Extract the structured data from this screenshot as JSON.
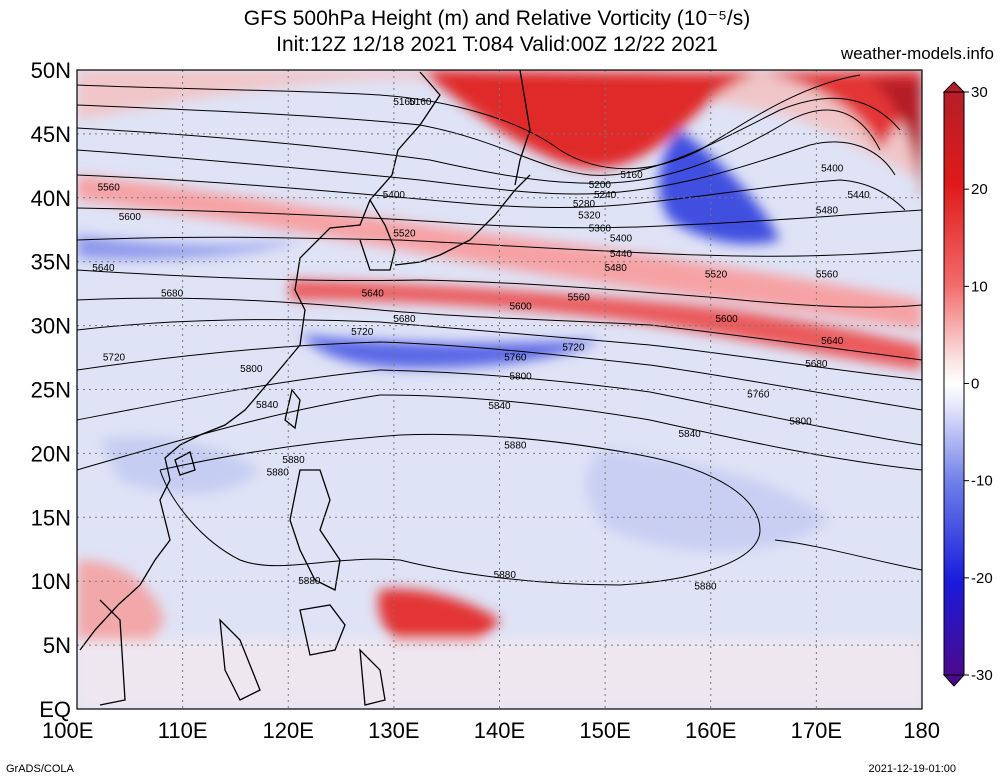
{
  "title_line1": "GFS 500hPa Height (m) and Relative Vorticity (10⁻⁵/s)",
  "title_line2": "Init:12Z 12/18 2021 T:084 Valid:00Z 12/22 2021",
  "site": "weather-models.info",
  "credit_left": "GrADS/COLA",
  "credit_right": "2021-12-19-01:00",
  "map": {
    "lon_range": [
      100,
      180
    ],
    "lat_range": [
      0,
      50
    ],
    "lat_labels": [
      "EQ",
      "5N",
      "10N",
      "15N",
      "20N",
      "25N",
      "30N",
      "35N",
      "40N",
      "45N",
      "50N"
    ],
    "lon_labels": [
      "100E",
      "110E",
      "120E",
      "130E",
      "140E",
      "150E",
      "160E",
      "170E",
      "180"
    ],
    "gridlines": "dotted"
  },
  "colorbar": {
    "ticks": [
      "30",
      "20",
      "10",
      "0",
      "-10",
      "-20",
      "-30"
    ],
    "range": [
      -30,
      30
    ],
    "colors": [
      "#4b0a8c",
      "#1a1adc",
      "#6f7ee8",
      "#ffffff",
      "#f26b6b",
      "#e01a1a",
      "#b41e28"
    ]
  },
  "contours": [
    {
      "label": "5160",
      "lon": 131.0,
      "lat": 47.5
    },
    {
      "label": "5160",
      "lon": 152.5,
      "lat": 41.8
    },
    {
      "label": "5200",
      "lon": 149.5,
      "lat": 41.0
    },
    {
      "label": "5240",
      "lon": 150.0,
      "lat": 40.2
    },
    {
      "label": "5280",
      "lon": 148.0,
      "lat": 39.5
    },
    {
      "label": "5320",
      "lon": 148.5,
      "lat": 38.6
    },
    {
      "label": "5360",
      "lon": 149.5,
      "lat": 37.6
    },
    {
      "label": "5400",
      "lon": 151.5,
      "lat": 36.8
    },
    {
      "label": "5440",
      "lon": 151.5,
      "lat": 35.6
    },
    {
      "label": "5480",
      "lon": 151.0,
      "lat": 34.5
    },
    {
      "label": "5520",
      "lon": 160.5,
      "lat": 34.0
    },
    {
      "label": "5560",
      "lon": 147.5,
      "lat": 32.2
    },
    {
      "label": "5600",
      "lon": 142.0,
      "lat": 31.5
    },
    {
      "label": "5640",
      "lon": 128.0,
      "lat": 32.5
    },
    {
      "label": "5680",
      "lon": 131.0,
      "lat": 30.5
    },
    {
      "label": "5720",
      "lon": 127.0,
      "lat": 29.5
    },
    {
      "label": "5760",
      "lon": 141.5,
      "lat": 27.5
    },
    {
      "label": "5720",
      "lon": 147.0,
      "lat": 28.3
    },
    {
      "label": "5800",
      "lon": 142.0,
      "lat": 26.0
    },
    {
      "label": "5800",
      "lon": 116.5,
      "lat": 26.6
    },
    {
      "label": "5840",
      "lon": 140.0,
      "lat": 23.7
    },
    {
      "label": "5880",
      "lon": 141.5,
      "lat": 20.6
    },
    {
      "label": "5880",
      "lon": 119.0,
      "lat": 18.5
    },
    {
      "label": "5880",
      "lon": 122.0,
      "lat": 10.0
    },
    {
      "label": "5880",
      "lon": 140.5,
      "lat": 10.5
    },
    {
      "label": "5880",
      "lon": 159.5,
      "lat": 9.6
    },
    {
      "label": "5400",
      "lon": 171.5,
      "lat": 42.3
    },
    {
      "label": "5440",
      "lon": 174.0,
      "lat": 40.2
    },
    {
      "label": "5480",
      "lon": 171.0,
      "lat": 39.0
    },
    {
      "label": "5560",
      "lon": 171.0,
      "lat": 34.0
    },
    {
      "label": "5600",
      "lon": 161.5,
      "lat": 30.5
    },
    {
      "label": "5640",
      "lon": 171.5,
      "lat": 28.8
    },
    {
      "label": "5680",
      "lon": 170.0,
      "lat": 27.0
    },
    {
      "label": "5760",
      "lon": 164.5,
      "lat": 24.6
    },
    {
      "label": "5800",
      "lon": 168.5,
      "lat": 22.5
    },
    {
      "label": "5840",
      "lon": 158.0,
      "lat": 21.5
    },
    {
      "label": "5560",
      "lon": 103.0,
      "lat": 40.8
    },
    {
      "label": "5600",
      "lon": 105.0,
      "lat": 38.5
    },
    {
      "label": "5640",
      "lon": 102.5,
      "lat": 34.5
    },
    {
      "label": "5680",
      "lon": 109.0,
      "lat": 32.5
    },
    {
      "label": "5720",
      "lon": 103.5,
      "lat": 27.5
    },
    {
      "label": "5840",
      "lon": 118.0,
      "lat": 23.8
    },
    {
      "label": "5880",
      "lon": 120.5,
      "lat": 19.5
    },
    {
      "label": "5520",
      "lon": 131.0,
      "lat": 37.2
    },
    {
      "label": "5400",
      "lon": 130.0,
      "lat": 40.2
    },
    {
      "label": "5160",
      "lon": 132.5,
      "lat": 47.5
    }
  ]
}
